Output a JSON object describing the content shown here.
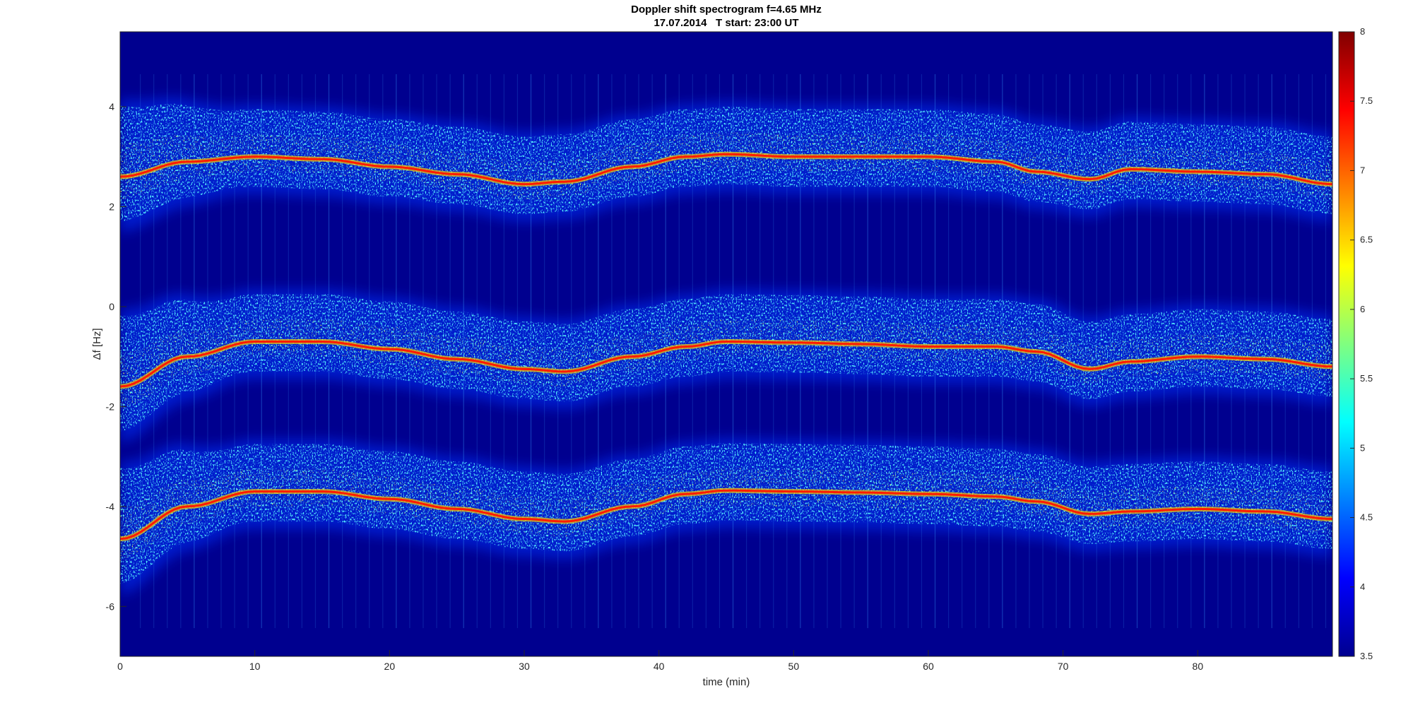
{
  "chart_data": {
    "type": "heatmap",
    "title": "Doppler shift spectrogram f=4.65 MHz",
    "subtitle": "17.07.2014   T start: 23:00 UT",
    "xlabel": "time (min)",
    "ylabel": "Δf [Hz]",
    "xlim": [
      0,
      90
    ],
    "ylim": [
      -7,
      5.5
    ],
    "x_ticks": [
      "0",
      "10",
      "20",
      "30",
      "40",
      "50",
      "60",
      "70",
      "80"
    ],
    "y_ticks": [
      "4",
      "2",
      "0",
      "-2",
      "-4",
      "-6"
    ],
    "colorbar": {
      "colormap": "jet",
      "range": [
        3.5,
        8
      ],
      "ticks": [
        "8",
        "7.5",
        "7",
        "6.5",
        "6",
        "5.5",
        "5",
        "4.5",
        "4",
        "3.5"
      ]
    },
    "background_color": "#00008f",
    "series": [
      {
        "name": "",
        "x": [
          0,
          5,
          10,
          15,
          20,
          25,
          30,
          33,
          38,
          42,
          45,
          50,
          55,
          60,
          65,
          68,
          72,
          75,
          80,
          85,
          90
        ],
        "y": [
          2.6,
          2.9,
          3.0,
          2.95,
          2.8,
          2.65,
          2.45,
          2.5,
          2.8,
          3.0,
          3.05,
          3.0,
          3.0,
          3.0,
          2.9,
          2.7,
          2.55,
          2.75,
          2.7,
          2.65,
          2.45
        ]
      },
      {
        "name": "",
        "x": [
          0,
          5,
          10,
          15,
          20,
          25,
          30,
          33,
          38,
          42,
          45,
          50,
          55,
          60,
          65,
          68,
          72,
          75,
          80,
          85,
          90
        ],
        "y": [
          -1.6,
          -1.0,
          -0.7,
          -0.7,
          -0.85,
          -1.05,
          -1.25,
          -1.3,
          -1.0,
          -0.8,
          -0.7,
          -0.72,
          -0.75,
          -0.8,
          -0.8,
          -0.9,
          -1.25,
          -1.1,
          -1.0,
          -1.05,
          -1.2
        ]
      },
      {
        "name": "",
        "x": [
          0,
          5,
          10,
          15,
          20,
          25,
          30,
          33,
          38,
          42,
          45,
          50,
          55,
          60,
          65,
          68,
          72,
          75,
          80,
          85,
          90
        ],
        "y": [
          -4.65,
          -4.0,
          -3.7,
          -3.7,
          -3.85,
          -4.05,
          -4.25,
          -4.3,
          -4.0,
          -3.75,
          -3.68,
          -3.7,
          -3.72,
          -3.75,
          -3.8,
          -3.9,
          -4.15,
          -4.1,
          -4.05,
          -4.1,
          -4.25
        ]
      }
    ]
  }
}
